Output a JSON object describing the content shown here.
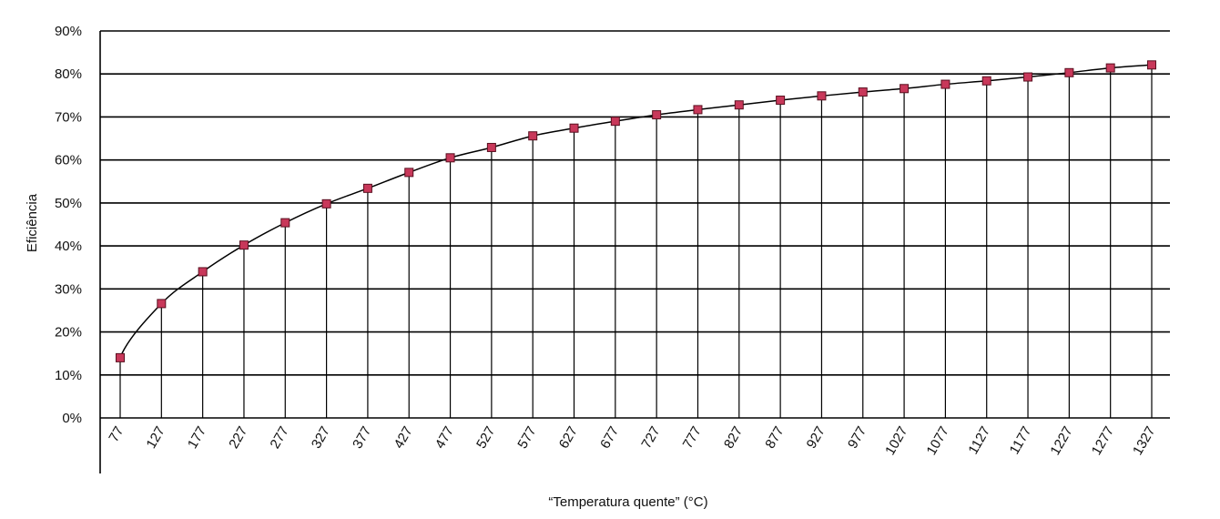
{
  "chart_data": {
    "type": "line",
    "title": "",
    "xlabel": "“Temperatura quente” (°C)",
    "ylabel": "Eficiência",
    "ylim": [
      0,
      0.9
    ],
    "y_ticks": [
      "0%",
      "10%",
      "20%",
      "30%",
      "40%",
      "50%",
      "60%",
      "70%",
      "80%",
      "90%"
    ],
    "grid": true,
    "marker_color": "#c8385a",
    "x": [
      77,
      127,
      177,
      227,
      277,
      327,
      377,
      427,
      477,
      527,
      577,
      627,
      677,
      727,
      777,
      827,
      877,
      927,
      977,
      1027,
      1077,
      1127,
      1177,
      1227,
      1277,
      1327
    ],
    "x_tick_labels": [
      "77",
      "127",
      "177",
      "227",
      "277",
      "327",
      "377",
      "427",
      "477",
      "527",
      "577",
      "627",
      "677",
      "727",
      "777",
      "827",
      "877",
      "927",
      "977",
      "1027",
      "1077",
      "1127",
      "1177",
      "1227",
      "1277",
      "1327"
    ],
    "series": [
      {
        "values": [
          0.14,
          0.266,
          0.34,
          0.402,
          0.454,
          0.498,
          0.534,
          0.571,
          0.605,
          0.629,
          0.656,
          0.674,
          0.69,
          0.705,
          0.717,
          0.728,
          0.739,
          0.749,
          0.758,
          0.766,
          0.776,
          0.784,
          0.793,
          0.803,
          0.814,
          0.821
        ]
      }
    ]
  }
}
